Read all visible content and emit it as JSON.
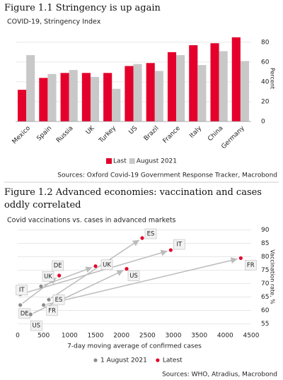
{
  "chart_data": [
    {
      "type": "bar",
      "figure_title": "Figure 1.1 Stringency is up again",
      "title": "COVID-19, Stringency Index",
      "y_label": "Percent",
      "categories": [
        "Mexico",
        "Spain",
        "Russia",
        "UK",
        "Turkey",
        "US",
        "Brazil",
        "France",
        "Italy",
        "China",
        "Germany"
      ],
      "series": [
        {
          "name": "Last",
          "color": "#e4002b",
          "values": [
            32,
            44,
            49,
            49,
            49,
            56,
            59,
            70,
            77,
            79,
            85
          ]
        },
        {
          "name": "August 2021",
          "color": "#c8c8c8",
          "values": [
            67,
            48,
            52,
            45,
            33,
            58,
            51,
            67,
            57,
            71,
            61
          ]
        }
      ],
      "ylim": [
        0,
        87
      ],
      "yticks": [
        0,
        20,
        40,
        60,
        80
      ],
      "grid": true,
      "source": "Sources: Oxford Covid-19 Government Response Tracker, Macrobond"
    },
    {
      "type": "scatter",
      "figure_title": "Figure 1.2 Advanced economies: vaccination and cases oddly correlated",
      "title": "Covid vaccinations vs. cases in advanced markets",
      "x_label": "7-day moving average of confirmed cases",
      "y_label": "Vaccination rate, %",
      "labels": [
        "UK",
        "IT",
        "DE",
        "ES",
        "FR",
        "US"
      ],
      "series": [
        {
          "name": "1 August 2021",
          "color": "#8c8c8c",
          "x": [
            450,
            50,
            50,
            600,
            500,
            250
          ],
          "values": [
            69,
            66,
            62,
            64,
            62,
            58.5
          ]
        },
        {
          "name": "Latest",
          "color": "#e4002b",
          "x": [
            1500,
            2950,
            800,
            2400,
            4300,
            2100
          ],
          "values": [
            76.5,
            82.5,
            73,
            87,
            79.5,
            75.5
          ]
        }
      ],
      "xlim": [
        0,
        4500
      ],
      "xticks": [
        0,
        500,
        1000,
        1500,
        2000,
        2500,
        3000,
        3500,
        4000,
        4500
      ],
      "ylim": [
        53,
        92
      ],
      "yticks": [
        55,
        60,
        65,
        70,
        75,
        80,
        85,
        90
      ],
      "grid": true,
      "source": "Sources: WHO, Atradius, Macrobond"
    }
  ]
}
